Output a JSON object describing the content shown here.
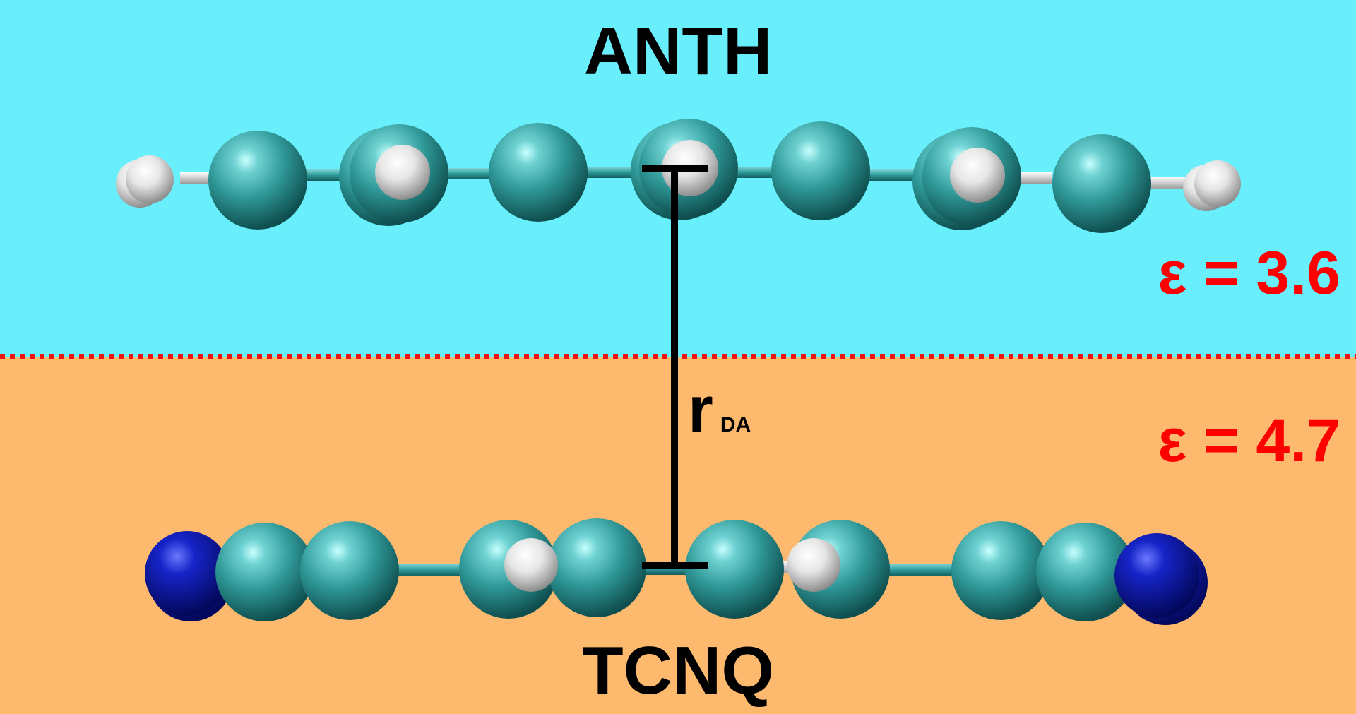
{
  "donor": {
    "label": "ANTH"
  },
  "acceptor": {
    "label": "TCNQ"
  },
  "distance": {
    "symbol": "r",
    "subscript": "DA"
  },
  "regions": {
    "top": {
      "epsilon_label": "ε = 3.6",
      "color": "#69EEFC"
    },
    "bottom": {
      "epsilon_label": "ε = 4.7",
      "color": "#FDBA6E"
    },
    "boundary_color": "#F01010",
    "label_color": "#FF0000"
  },
  "atoms": {
    "carbon_color": "#2E9A9A",
    "hydrogen_color": "#FFFFFF",
    "nitrogen_color": "#0A14B4"
  }
}
